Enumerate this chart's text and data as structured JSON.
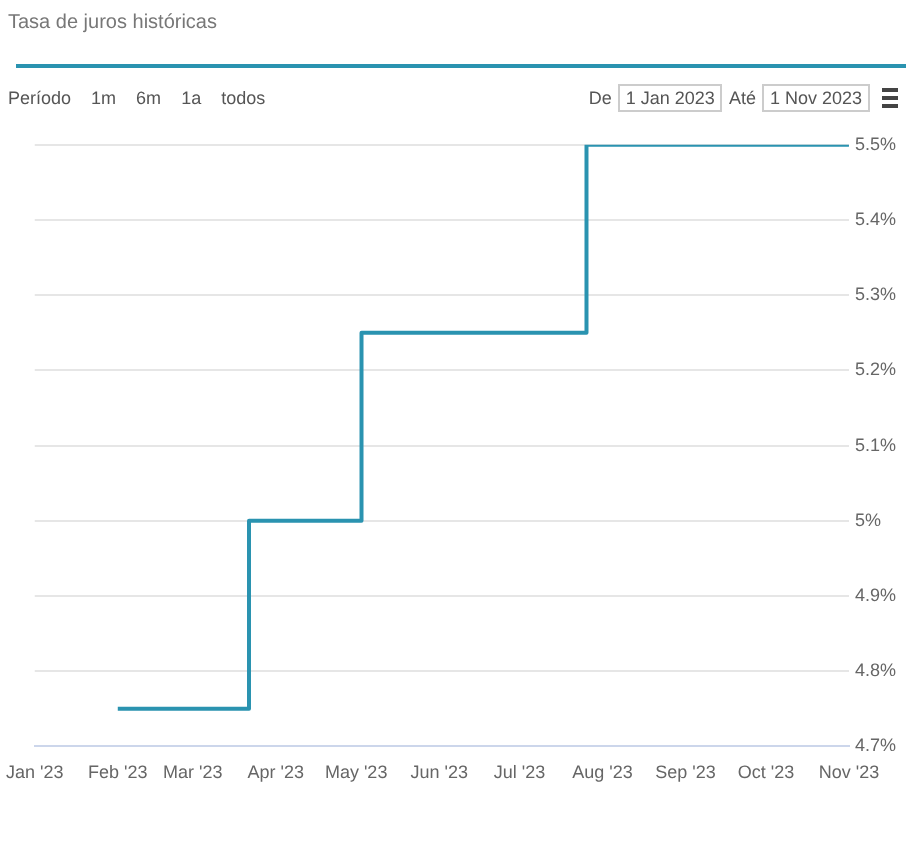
{
  "chart_data": {
    "type": "step",
    "title": "Tasa de juros históricas",
    "annotations": [
      "Período",
      "1m",
      "6m",
      "1a",
      "todos",
      "De",
      "1 Jan 2023",
      "Até",
      "1 Nov 2023"
    ],
    "x": [
      "2023-02-01",
      "2023-03-22",
      "2023-05-03",
      "2023-07-26",
      "2023-11-01"
    ],
    "series": [
      {
        "color": "#2a93b0",
        "values": [
          4.75,
          5.0,
          5.25,
          5.5,
          5.5
        ]
      }
    ],
    "xlim": [
      "2023-01-01",
      "2023-11-01"
    ],
    "xticks": [
      {
        "value": "2023-01-01",
        "label": "Jan '23"
      },
      {
        "value": "2023-02-01",
        "label": "Feb '23"
      },
      {
        "value": "2023-03-01",
        "label": "Mar '23"
      },
      {
        "value": "2023-04-01",
        "label": "Apr '23"
      },
      {
        "value": "2023-05-01",
        "label": "May '23"
      },
      {
        "value": "2023-06-01",
        "label": "Jun '23"
      },
      {
        "value": "2023-07-01",
        "label": "Jul '23"
      },
      {
        "value": "2023-08-01",
        "label": "Aug '23"
      },
      {
        "value": "2023-09-01",
        "label": "Sep '23"
      },
      {
        "value": "2023-10-01",
        "label": "Oct '23"
      },
      {
        "value": "2023-11-01",
        "label": "Nov '23"
      }
    ],
    "ylim": [
      4.7,
      5.5
    ],
    "yticks": [
      {
        "value": 4.7,
        "label": "4.7%"
      },
      {
        "value": 4.8,
        "label": "4.8%"
      },
      {
        "value": 4.9,
        "label": "4.9%"
      },
      {
        "value": 5,
        "label": "5%"
      },
      {
        "value": 5.1,
        "label": "5.1%"
      },
      {
        "value": 5.2,
        "label": "5.2%"
      },
      {
        "value": 5.3,
        "label": "5.3%"
      },
      {
        "value": 5.4,
        "label": "5.4%"
      },
      {
        "value": 5.5,
        "label": "5.5%"
      }
    ],
    "grid": "y",
    "legend": false,
    "marker": "none",
    "line_style": "solid"
  }
}
